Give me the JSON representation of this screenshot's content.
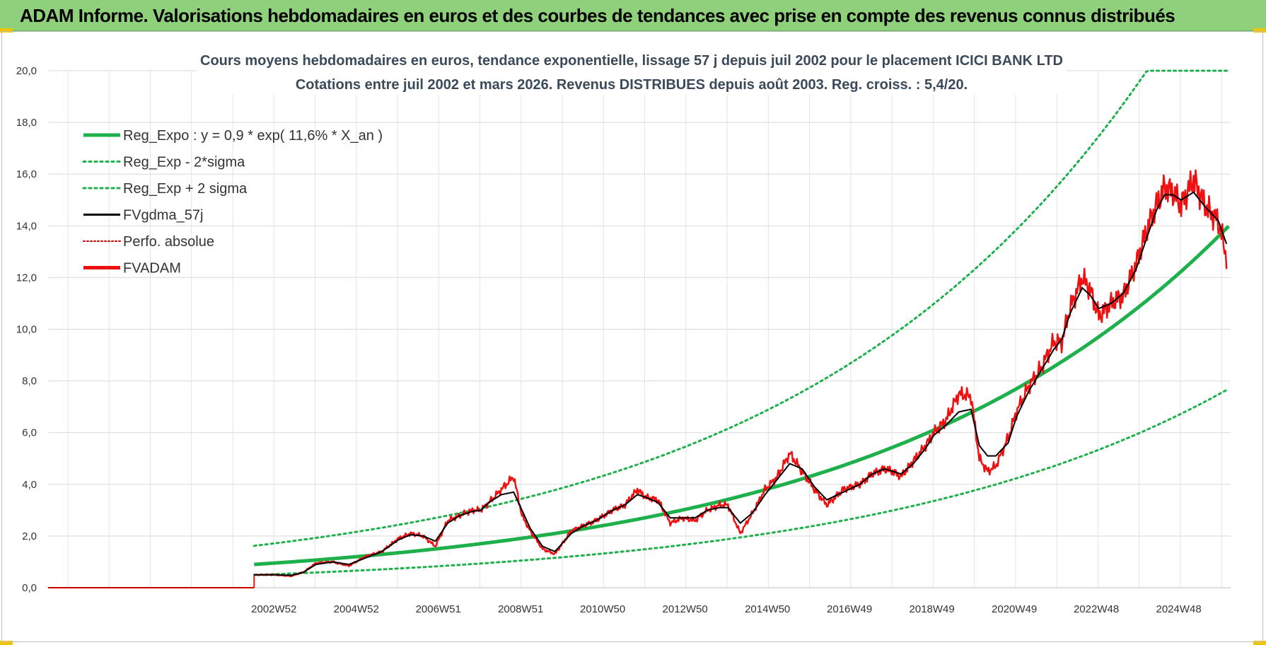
{
  "banner": {
    "title": "ADAM Informe. Valorisations hebdomadaires en euros et des courbes de tendances avec prise en compte des revenus connus distribués"
  },
  "colors": {
    "banner": "#8fd07a",
    "reg_expo": "#1db04b",
    "fvgdma": "#000000",
    "fvadam": "#ee1111",
    "perfo": "#cc0000",
    "corner": "#f2c400"
  },
  "chart_data": {
    "type": "line",
    "title": "Cours moyens hebdomadaires en euros, tendance exponentielle, lissage 57 j depuis juil 2002 pour le placement ICICI BANK LTD",
    "subtitle": "Cotations entre juil 2002 et mars 2026. Revenus DISTRIBUES depuis août 2003. Reg. croiss. : 5,4/20.",
    "ylim": [
      0,
      20
    ],
    "y_ticks": [
      "0,0",
      "2,0",
      "4,0",
      "6,0",
      "8,0",
      "10,0",
      "12,0",
      "14,0",
      "16,0",
      "18,0",
      "20,0"
    ],
    "x_ticks": [
      "2002W52",
      "2004W52",
      "2006W51",
      "2008W51",
      "2010W50",
      "2012W50",
      "2014W50",
      "2016W49",
      "2018W49",
      "2020W49",
      "2022W48",
      "2024W48"
    ],
    "x_tick_years": [
      2002.98,
      2004.98,
      2006.97,
      2008.97,
      2010.96,
      2012.96,
      2014.96,
      2016.95,
      2018.95,
      2020.95,
      2022.94,
      2024.94
    ],
    "x_range": [
      1997.5,
      2026.2
    ],
    "data_start": 2002.5,
    "grid": true,
    "legend_position": "top-left",
    "legend": [
      {
        "label": "Reg_Expo : y = 0,9 * exp( 11,6% *  X_an )",
        "style": "solid-thick",
        "color": "#1db04b"
      },
      {
        "label": "Reg_Exp - 2*sigma",
        "style": "dotted",
        "color": "#1db04b"
      },
      {
        "label": "Reg_Exp + 2 sigma",
        "style": "dotted",
        "color": "#1db04b"
      },
      {
        "label": "FVgdma_57j",
        "style": "solid",
        "color": "#000000"
      },
      {
        "label": "Perfo. absolue",
        "style": "dotted-thin",
        "color": "#cc0000"
      },
      {
        "label": "FVADAM",
        "style": "solid-thick",
        "color": "#ee1111"
      }
    ],
    "reg_expo": {
      "a": 0.9,
      "rate": 0.116,
      "upper_factor": 1.8,
      "lower_factor": 0.55
    },
    "fvadam": {
      "x": [
        2002.5,
        2002.6,
        2003.0,
        2003.4,
        2003.7,
        2004.0,
        2004.4,
        2004.8,
        2005.2,
        2005.6,
        2006.0,
        2006.3,
        2006.6,
        2006.9,
        2007.2,
        2007.5,
        2007.8,
        2008.0,
        2008.2,
        2008.5,
        2008.8,
        2009.0,
        2009.2,
        2009.5,
        2009.8,
        2010.2,
        2010.5,
        2010.8,
        2011.2,
        2011.5,
        2011.8,
        2012.0,
        2012.3,
        2012.6,
        2012.9,
        2013.2,
        2013.5,
        2013.8,
        2014.0,
        2014.3,
        2014.6,
        2014.9,
        2015.2,
        2015.5,
        2015.8,
        2016.1,
        2016.4,
        2016.8,
        2017.2,
        2017.5,
        2017.8,
        2018.0,
        2018.2,
        2018.5,
        2018.8,
        2019.0,
        2019.3,
        2019.6,
        2019.9,
        2020.1,
        2020.3,
        2020.5,
        2020.8,
        2021.0,
        2021.3,
        2021.6,
        2021.9,
        2022.1,
        2022.3,
        2022.6,
        2022.8,
        2023.0,
        2023.3,
        2023.6,
        2023.9,
        2024.2,
        2024.4,
        2024.6,
        2024.8,
        2025.0,
        2025.3,
        2025.6,
        2025.9,
        2026.1
      ],
      "values": [
        0.5,
        0.5,
        0.5,
        0.45,
        0.6,
        0.95,
        1.0,
        0.85,
        1.2,
        1.4,
        1.9,
        2.1,
        2.0,
        1.6,
        2.6,
        2.8,
        3.0,
        3.0,
        3.3,
        3.8,
        4.3,
        2.8,
        2.2,
        1.5,
        1.3,
        2.2,
        2.4,
        2.6,
        3.0,
        3.2,
        3.8,
        3.5,
        3.4,
        2.5,
        2.7,
        2.6,
        3.0,
        3.2,
        3.2,
        2.1,
        2.9,
        3.8,
        4.3,
        5.2,
        4.5,
        3.8,
        3.2,
        3.8,
        4.0,
        4.4,
        4.6,
        4.5,
        4.3,
        4.9,
        5.5,
        6.0,
        6.5,
        7.5,
        7.4,
        5.0,
        4.5,
        4.7,
        5.8,
        6.8,
        7.8,
        8.5,
        9.5,
        9.5,
        10.8,
        12.0,
        11.5,
        10.5,
        11.0,
        11.3,
        12.5,
        14.0,
        14.8,
        15.5,
        15.3,
        14.8,
        15.8,
        14.7,
        14.2,
        12.8
      ]
    },
    "fvgdma_57j": {
      "x": [
        2002.5,
        2002.6,
        2003.0,
        2003.4,
        2003.7,
        2004.0,
        2004.4,
        2004.8,
        2005.2,
        2005.6,
        2006.0,
        2006.3,
        2006.6,
        2006.9,
        2007.2,
        2007.5,
        2007.8,
        2008.0,
        2008.2,
        2008.5,
        2008.8,
        2009.0,
        2009.2,
        2009.5,
        2009.8,
        2010.2,
        2010.5,
        2010.8,
        2011.2,
        2011.5,
        2011.8,
        2012.0,
        2012.3,
        2012.6,
        2012.9,
        2013.2,
        2013.5,
        2013.8,
        2014.0,
        2014.3,
        2014.6,
        2014.9,
        2015.2,
        2015.5,
        2015.8,
        2016.1,
        2016.4,
        2016.8,
        2017.2,
        2017.5,
        2017.8,
        2018.0,
        2018.2,
        2018.5,
        2018.8,
        2019.0,
        2019.3,
        2019.6,
        2019.9,
        2020.1,
        2020.3,
        2020.5,
        2020.8,
        2021.0,
        2021.3,
        2021.6,
        2021.9,
        2022.1,
        2022.3,
        2022.6,
        2022.8,
        2023.0,
        2023.3,
        2023.6,
        2023.9,
        2024.2,
        2024.4,
        2024.6,
        2024.8,
        2025.0,
        2025.3,
        2025.6,
        2025.9,
        2026.1
      ],
      "values": [
        0.5,
        0.5,
        0.5,
        0.48,
        0.6,
        0.9,
        1.0,
        0.9,
        1.15,
        1.4,
        1.85,
        2.05,
        2.0,
        1.8,
        2.5,
        2.8,
        2.95,
        3.0,
        3.3,
        3.6,
        3.7,
        3.0,
        2.3,
        1.6,
        1.4,
        2.1,
        2.4,
        2.6,
        3.0,
        3.2,
        3.6,
        3.5,
        3.3,
        2.7,
        2.7,
        2.7,
        3.0,
        3.1,
        3.1,
        2.5,
        2.9,
        3.6,
        4.2,
        4.8,
        4.6,
        3.9,
        3.4,
        3.7,
        4.0,
        4.4,
        4.6,
        4.5,
        4.4,
        4.8,
        5.4,
        5.9,
        6.3,
        6.8,
        6.9,
        5.5,
        5.1,
        5.1,
        5.6,
        6.6,
        7.6,
        8.4,
        9.2,
        9.6,
        10.6,
        11.6,
        11.3,
        10.8,
        11.0,
        11.4,
        12.3,
        13.7,
        14.6,
        15.2,
        15.2,
        15.0,
        15.3,
        14.7,
        14.2,
        13.3
      ]
    }
  }
}
